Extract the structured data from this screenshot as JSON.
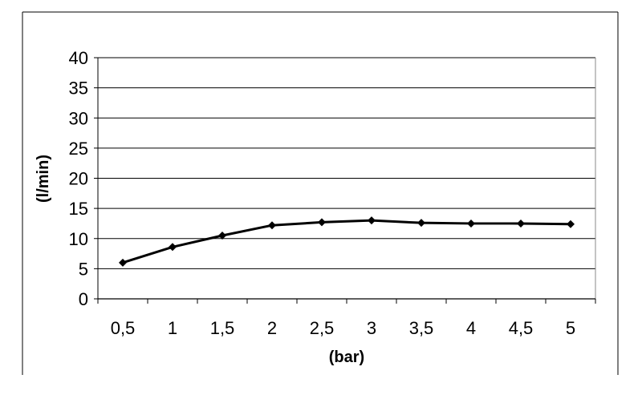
{
  "chart_data": {
    "type": "line",
    "title": "",
    "xlabel": "(bar)",
    "ylabel": "(l/min)",
    "categories": [
      "0,5",
      "1",
      "1,5",
      "2",
      "2,5",
      "3",
      "3,5",
      "4",
      "4,5",
      "5"
    ],
    "x": [
      0.5,
      1,
      1.5,
      2,
      2.5,
      3,
      3.5,
      4,
      4.5,
      5
    ],
    "series": [
      {
        "values": [
          6.0,
          8.6,
          10.5,
          12.2,
          12.7,
          13.0,
          12.6,
          12.5,
          12.5,
          12.4
        ],
        "color": "#000000",
        "marker": "diamond"
      }
    ],
    "ylim": [
      0,
      40
    ],
    "yticks": [
      "0",
      "5",
      "10",
      "15",
      "20",
      "25",
      "30",
      "35",
      "40"
    ],
    "grid": "horizontal",
    "legend": "none"
  }
}
